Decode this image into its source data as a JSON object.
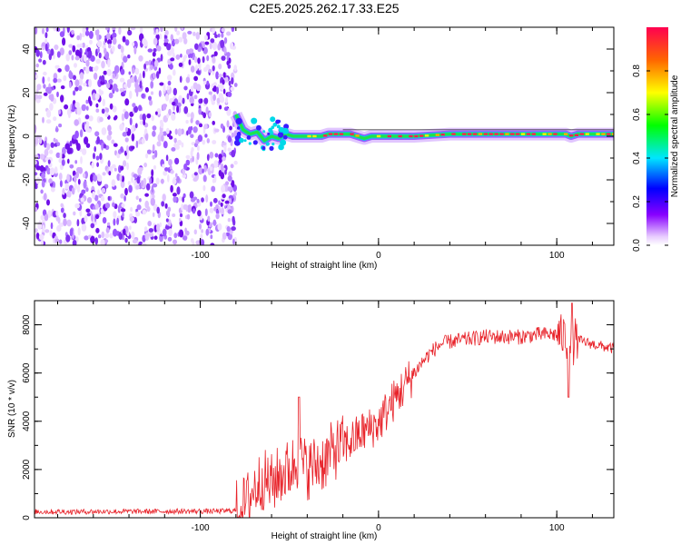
{
  "chart_data": [
    {
      "type": "heatmap",
      "title": "C2E5.2025.262.17.33.E25",
      "xlabel": "Height of straight line (km)",
      "ylabel": "Frequency (Hz)",
      "xlim": [
        -193,
        132
      ],
      "ylim": [
        -50,
        50
      ],
      "x_ticks": [
        -100,
        0,
        100
      ],
      "x_tick_labels": [
        "-100",
        "0",
        "100"
      ],
      "y_ticks": [
        -40,
        -20,
        0,
        20,
        40
      ],
      "y_tick_labels": [
        "-40",
        "-20",
        "0",
        "20",
        "40"
      ],
      "noise_region_x": [
        -193,
        -80
      ],
      "signal_ridge": {
        "x": [
          -80,
          -76,
          -72,
          -68,
          -64,
          -60,
          -56,
          -52,
          -48,
          -44,
          -40,
          -36,
          -32,
          -28,
          -24,
          -20,
          -16,
          -12,
          -8,
          -4,
          0,
          10,
          20,
          30,
          40,
          50,
          60,
          70,
          80,
          90,
          100,
          105,
          108,
          112,
          120,
          132
        ],
        "y": [
          10,
          3,
          1,
          2,
          -2,
          0,
          -1,
          1,
          0,
          0,
          0,
          0,
          0,
          1,
          1,
          1,
          1,
          0,
          -1,
          0,
          0,
          0,
          0,
          0.5,
          1,
          1,
          1,
          1,
          1,
          1,
          1,
          1,
          0,
          1,
          1,
          1
        ]
      },
      "colorbar": {
        "label": "Normalized spectral amplitude",
        "ticks": [
          0.0,
          0.2,
          0.4,
          0.6,
          0.8
        ],
        "tick_labels": [
          "0.0",
          "0.2",
          "0.4",
          "0.6",
          "0.8"
        ],
        "range": [
          0,
          1
        ]
      }
    },
    {
      "type": "line",
      "title": "",
      "xlabel": "Height of straight line (km)",
      "ylabel": "SNR (10 * v/v)",
      "xlim": [
        -193,
        132
      ],
      "ylim": [
        0,
        9000
      ],
      "x_ticks": [
        -100,
        0,
        100
      ],
      "x_tick_labels": [
        "-100",
        "0",
        "100"
      ],
      "y_ticks": [
        0,
        2000,
        4000,
        6000,
        8000
      ],
      "y_tick_labels": [
        "0",
        "2000",
        "4000",
        "6000",
        "8000"
      ],
      "series": [
        {
          "name": "SNR",
          "color": "#e8232a",
          "x": [
            -193,
            -170,
            -150,
            -130,
            -110,
            -90,
            -80,
            -75,
            -70,
            -65,
            -60,
            -55,
            -50,
            -45,
            -40,
            -35,
            -30,
            -25,
            -20,
            -15,
            -10,
            -5,
            0,
            5,
            10,
            15,
            20,
            25,
            30,
            35,
            40,
            50,
            60,
            70,
            80,
            90,
            100,
            105,
            108,
            110,
            115,
            120,
            132
          ],
          "y": [
            250,
            250,
            260,
            260,
            270,
            270,
            300,
            500,
            1200,
            1600,
            1400,
            1800,
            2000,
            2400,
            2000,
            2200,
            2400,
            2800,
            3000,
            3200,
            3500,
            3700,
            3900,
            4500,
            5000,
            5500,
            6000,
            6500,
            6900,
            7200,
            7300,
            7400,
            7500,
            7500,
            7500,
            7600,
            7600,
            7500,
            6800,
            7400,
            7300,
            7200,
            7000
          ]
        }
      ]
    }
  ]
}
